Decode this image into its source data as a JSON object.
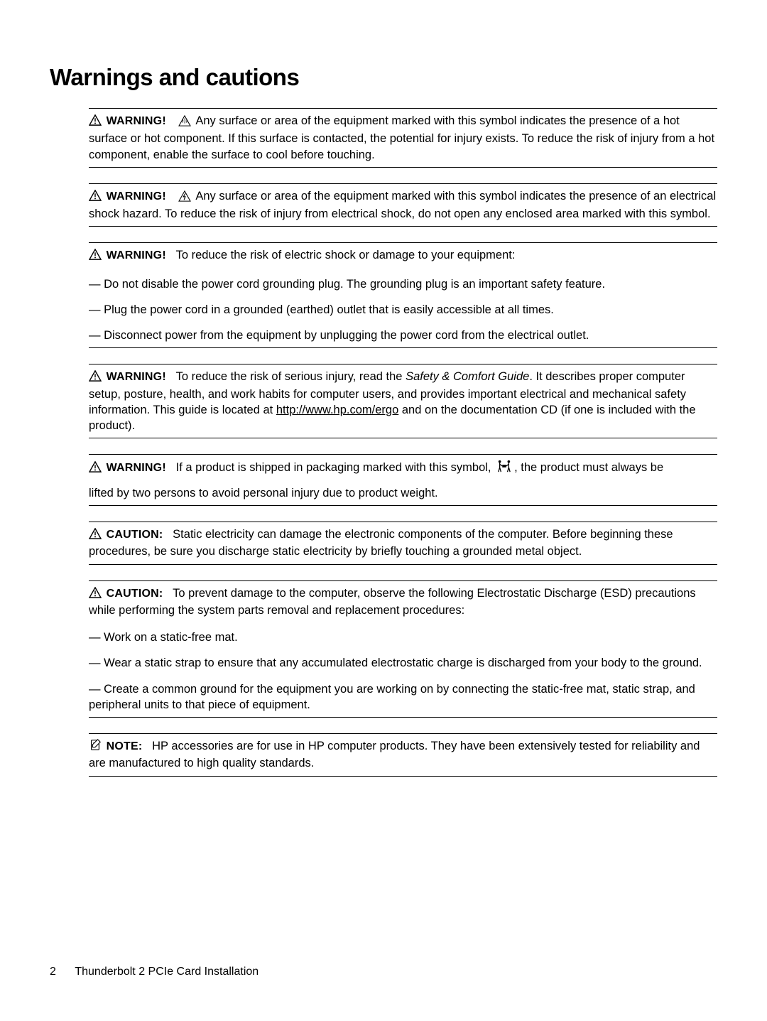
{
  "page": {
    "title": "Warnings and cautions",
    "footer_page": "2",
    "footer_title": "Thunderbolt 2 PCIe Card Installation"
  },
  "labels": {
    "warning": "WARNING!",
    "caution": "CAUTION:",
    "note": "NOTE:"
  },
  "admon": [
    {
      "icon": "warning",
      "label_key": "warning",
      "inline_icon": "hot",
      "body": "Any surface or area of the equipment marked with this symbol indicates the presence of a hot surface or hot component. If this surface is contacted, the potential for injury exists. To reduce the risk of injury from a hot component, enable the surface to cool before touching."
    },
    {
      "icon": "warning",
      "label_key": "warning",
      "inline_icon": "shock",
      "body": "Any surface or area of the equipment marked with this symbol indicates the presence of an electrical shock hazard. To reduce the risk of injury from electrical shock, do not open any enclosed area marked with this symbol."
    },
    {
      "icon": "warning",
      "label_key": "warning",
      "body": "To reduce the risk of electric shock or damage to your equipment:",
      "sub": [
        "— Do not disable the power cord grounding plug. The grounding plug is an important safety feature.",
        "— Plug the power cord in a grounded (earthed) outlet that is easily accessible at all times.",
        "— Disconnect power from the equipment by unplugging the power cord from the electrical outlet."
      ]
    },
    {
      "icon": "warning",
      "label_key": "warning",
      "body_pre": "To reduce the risk of serious injury, read the ",
      "body_italic": "Safety & Comfort Guide",
      "body_mid": ". It describes proper computer setup, posture, health, and work habits for computer users, and provides important electrical and mechanical safety information. This guide is located at ",
      "body_link": "http://www.hp.com/ergo",
      "body_post": " and on the documentation CD (if one is included with the product)."
    },
    {
      "icon": "warning",
      "label_key": "warning",
      "body_pre": "If a product is shipped in packaging marked with this symbol, ",
      "inline_icon_mid": "twoperson",
      "body_post": ", the product must always be",
      "second_line": "lifted by two persons to avoid personal injury due to product weight."
    },
    {
      "icon": "warning",
      "label_key": "caution",
      "body": "Static electricity can damage the electronic components of the computer. Before beginning these procedures, be sure you discharge static electricity by briefly touching a grounded metal object."
    },
    {
      "icon": "warning",
      "label_key": "caution",
      "body": "To prevent damage to the computer, observe the following Electrostatic Discharge (ESD) precautions while performing the system parts removal and replacement procedures:",
      "sub": [
        "— Work on a static-free mat.",
        "— Wear a static strap to ensure that any accumulated electrostatic charge is discharged from your body to the ground.",
        "— Create a common ground for the equipment you are working on by connecting the static-free mat, static strap, and peripheral units to that piece of equipment."
      ]
    },
    {
      "icon": "note",
      "label_key": "note",
      "body": "HP accessories are for use in HP computer products. They have been extensively tested for reliability and are manufactured to high quality standards."
    }
  ],
  "icons": {
    "warning_svg_stroke": "#000000",
    "note_svg_stroke": "#000000"
  }
}
